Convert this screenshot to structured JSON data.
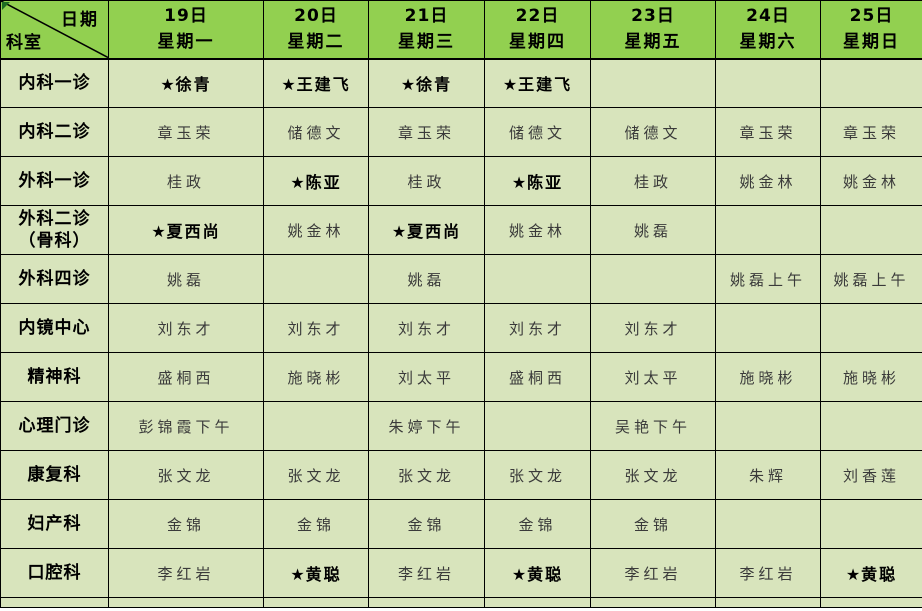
{
  "icons": {
    "star": "★",
    "corner_marker": "triangle"
  },
  "colors": {
    "header_bg": "#92D050",
    "body_bg": "#D8E4BC",
    "border": "#000000",
    "marker_green": "#1e6b22"
  },
  "corner": {
    "top": "日期",
    "bottom": "科室"
  },
  "columns": [
    {
      "date": "19日",
      "weekday": "星期一"
    },
    {
      "date": "20日",
      "weekday": "星期二"
    },
    {
      "date": "21日",
      "weekday": "星期三"
    },
    {
      "date": "22日",
      "weekday": "星期四"
    },
    {
      "date": "23日",
      "weekday": "星期五"
    },
    {
      "date": "24日",
      "weekday": "星期六"
    },
    {
      "date": "25日",
      "weekday": "星期日"
    }
  ],
  "rows": [
    {
      "dept": [
        "内科一诊"
      ],
      "cells": [
        {
          "text": "徐青",
          "star": true
        },
        {
          "text": "王建飞",
          "star": true
        },
        {
          "text": "徐青",
          "star": true
        },
        {
          "text": "王建飞",
          "star": true
        },
        {
          "text": ""
        },
        {
          "text": ""
        },
        {
          "text": ""
        }
      ]
    },
    {
      "dept": [
        "内科二诊"
      ],
      "cells": [
        {
          "text": "章玉荣"
        },
        {
          "text": "储德文"
        },
        {
          "text": "章玉荣"
        },
        {
          "text": "储德文"
        },
        {
          "text": "储德文"
        },
        {
          "text": "章玉荣"
        },
        {
          "text": "章玉荣"
        }
      ]
    },
    {
      "dept": [
        "外科一诊"
      ],
      "cells": [
        {
          "text": "桂政"
        },
        {
          "text": "陈亚",
          "star": true
        },
        {
          "text": "桂政"
        },
        {
          "text": "陈亚",
          "star": true
        },
        {
          "text": "桂政"
        },
        {
          "text": "姚金林"
        },
        {
          "text": "姚金林"
        }
      ]
    },
    {
      "dept": [
        "外科二诊",
        "（骨科）"
      ],
      "cells": [
        {
          "text": "夏西尚",
          "star": true
        },
        {
          "text": "姚金林"
        },
        {
          "text": "夏西尚",
          "star": true
        },
        {
          "text": "姚金林"
        },
        {
          "text": "姚磊"
        },
        {
          "text": ""
        },
        {
          "text": ""
        }
      ]
    },
    {
      "dept": [
        "外科四诊"
      ],
      "cells": [
        {
          "text": "姚磊"
        },
        {
          "text": ""
        },
        {
          "text": "姚磊"
        },
        {
          "text": ""
        },
        {
          "text": ""
        },
        {
          "text": "姚磊上午"
        },
        {
          "text": "姚磊上午"
        }
      ]
    },
    {
      "dept": [
        "内镜中心"
      ],
      "cells": [
        {
          "text": "刘东才"
        },
        {
          "text": "刘东才"
        },
        {
          "text": "刘东才"
        },
        {
          "text": "刘东才"
        },
        {
          "text": "刘东才"
        },
        {
          "text": ""
        },
        {
          "text": ""
        }
      ]
    },
    {
      "dept": [
        "精神科"
      ],
      "cells": [
        {
          "text": "盛桐西"
        },
        {
          "text": "施晓彬"
        },
        {
          "text": "刘太平"
        },
        {
          "text": "盛桐西"
        },
        {
          "text": "刘太平"
        },
        {
          "text": "施晓彬"
        },
        {
          "text": "施晓彬"
        }
      ]
    },
    {
      "dept": [
        "心理门诊"
      ],
      "cells": [
        {
          "text": "彭锦霞下午"
        },
        {
          "text": ""
        },
        {
          "text": "朱婷下午"
        },
        {
          "text": ""
        },
        {
          "text": "吴艳下午"
        },
        {
          "text": ""
        },
        {
          "text": ""
        }
      ]
    },
    {
      "dept": [
        "康复科"
      ],
      "cells": [
        {
          "text": "张文龙"
        },
        {
          "text": "张文龙"
        },
        {
          "text": "张文龙"
        },
        {
          "text": "张文龙"
        },
        {
          "text": "张文龙"
        },
        {
          "text": "朱辉"
        },
        {
          "text": "刘香莲"
        }
      ]
    },
    {
      "dept": [
        "妇产科"
      ],
      "cells": [
        {
          "text": "金锦"
        },
        {
          "text": "金锦"
        },
        {
          "text": "金锦"
        },
        {
          "text": "金锦"
        },
        {
          "text": "金锦"
        },
        {
          "text": ""
        },
        {
          "text": ""
        }
      ]
    },
    {
      "dept": [
        "口腔科"
      ],
      "cells": [
        {
          "text": "李红岩"
        },
        {
          "text": "黄聪",
          "star": true
        },
        {
          "text": "李红岩"
        },
        {
          "text": "黄聪",
          "star": true
        },
        {
          "text": "李红岩"
        },
        {
          "text": "李红岩"
        },
        {
          "text": "黄聪",
          "star": true
        }
      ]
    }
  ]
}
